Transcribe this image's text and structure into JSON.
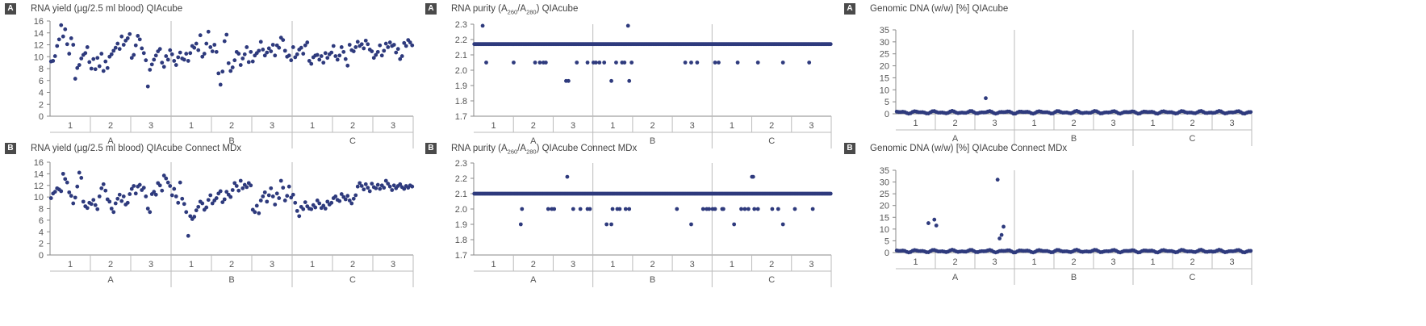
{
  "chart_data": [
    {
      "id": "p1",
      "badge": "A",
      "title_parts": [
        {
          "t": "RNA yield (µg/2.5 ml blood) QIAcube"
        }
      ],
      "type": "scatter",
      "ylim": [
        0,
        16
      ],
      "yticks": [
        0,
        2,
        4,
        6,
        8,
        10,
        12,
        14,
        16
      ],
      "groups": [
        "A",
        "B",
        "C"
      ],
      "subgroups": [
        "1",
        "2",
        "3"
      ],
      "x": [
        1,
        2,
        3,
        4,
        5,
        6,
        7,
        8,
        9,
        10,
        11,
        12,
        13,
        14,
        15,
        16,
        17,
        18,
        19,
        20,
        21,
        22,
        23,
        24,
        25,
        26,
        27,
        28,
        29,
        30,
        31,
        32,
        33,
        34,
        35,
        36,
        37,
        38,
        39,
        40,
        41,
        42,
        43,
        44,
        45,
        46,
        47,
        48,
        49,
        50,
        51,
        52,
        53,
        54,
        55,
        56,
        57,
        58,
        59,
        60,
        61,
        62,
        63,
        64,
        65,
        66,
        67,
        68,
        69,
        70,
        71,
        72,
        73,
        74,
        75,
        76,
        77,
        78,
        79,
        80,
        81,
        82,
        83,
        84,
        85,
        86,
        87,
        88,
        89,
        90,
        91,
        92,
        93,
        94,
        95,
        96,
        97,
        98,
        99,
        100,
        101,
        102,
        103,
        104,
        105,
        106,
        107,
        108,
        109,
        110,
        111,
        112,
        113,
        114,
        115,
        116,
        117,
        118,
        119,
        120,
        121,
        122,
        123,
        124,
        125,
        126,
        127,
        128,
        129,
        130,
        131,
        132,
        133,
        134,
        135,
        136,
        137,
        138,
        139,
        140,
        141,
        142,
        143,
        144,
        145,
        146,
        147,
        148,
        149,
        150,
        151,
        152,
        153,
        154,
        155,
        156,
        157,
        158,
        159,
        160,
        161,
        162,
        163,
        164,
        165,
        166,
        167,
        168,
        169,
        170,
        171,
        172,
        173,
        174,
        175,
        176,
        177,
        178,
        179,
        180
      ],
      "y": [
        9.2,
        9.3,
        10.1,
        11.8,
        12.9,
        15.3,
        13.4,
        14.6,
        12.1,
        10.5,
        13.1,
        12.0,
        6.3,
        8.1,
        8.6,
        9.7,
        10.3,
        10.6,
        11.6,
        9.1,
        8.0,
        9.6,
        7.9,
        9.8,
        8.4,
        10.5,
        7.6,
        9.2,
        8.1,
        10.0,
        10.4,
        11.0,
        11.5,
        12.2,
        11.3,
        13.4,
        12.0,
        12.7,
        13.1,
        13.8,
        9.8,
        10.3,
        11.9,
        13.5,
        12.9,
        11.4,
        10.6,
        9.4,
        5.0,
        7.8,
        8.7,
        9.5,
        10.2,
        10.9,
        11.3,
        9.0,
        8.3,
        10.1,
        9.5,
        11.1,
        10.4,
        9.3,
        8.6,
        9.9,
        10.7,
        9.7,
        9.5,
        10.5,
        9.3,
        10.6,
        11.8,
        11.5,
        12.2,
        11.1,
        13.6,
        10.0,
        10.5,
        12.2,
        14.2,
        11.6,
        10.9,
        12.0,
        10.8,
        7.2,
        5.3,
        7.5,
        12.6,
        13.7,
        8.9,
        7.6,
        8.2,
        9.4,
        10.8,
        10.5,
        8.6,
        9.7,
        10.4,
        11.6,
        9.1,
        10.8,
        9.2,
        10.2,
        10.6,
        11.0,
        12.5,
        11.2,
        10.2,
        10.7,
        11.4,
        10.9,
        12.0,
        10.2,
        11.9,
        11.5,
        13.2,
        12.8,
        11.0,
        10.0,
        10.2,
        9.4,
        11.6,
        9.9,
        10.4,
        11.2,
        11.5,
        10.5,
        11.9,
        12.4,
        9.3,
        8.8,
        9.9,
        10.2,
        10.3,
        9.5,
        10.1,
        9.0,
        10.6,
        9.8,
        10.4,
        10.7,
        11.8,
        10.1,
        9.5,
        10.2,
        11.6,
        10.8,
        9.6,
        8.5,
        12.0,
        11.1,
        10.9,
        11.6,
        12.5,
        11.8,
        12.1,
        11.4,
        12.7,
        12.1,
        11.2,
        10.9,
        9.8,
        10.3,
        10.8,
        11.9,
        10.2,
        11.0,
        12.2,
        11.6,
        12.4,
        11.8,
        12.0,
        10.7,
        11.3,
        9.6,
        10.1,
        12.3,
        11.8,
        12.8,
        12.4,
        11.9
      ]
    },
    {
      "id": "p2",
      "badge": "A",
      "title_parts": [
        {
          "t": "RNA purity (A"
        },
        {
          "s": "260"
        },
        {
          "t": "/A"
        },
        {
          "s": "280"
        },
        {
          "t": ") QIAcube"
        }
      ],
      "type": "scatter",
      "ylim": [
        1.7,
        2.3
      ],
      "yticks": [
        1.7,
        1.8,
        1.9,
        2.0,
        2.1,
        2.2,
        2.3
      ],
      "ydecimals": 1,
      "groups": [
        "A",
        "B",
        "C"
      ],
      "subgroups": [
        "1",
        "2",
        "3"
      ],
      "baseline": 2.17,
      "points": [
        [
          8,
          2.29
        ],
        [
          11,
          2.05
        ],
        [
          34,
          2.05
        ],
        [
          52,
          2.05
        ],
        [
          56,
          2.05
        ],
        [
          59,
          2.05
        ],
        [
          61,
          2.05
        ],
        [
          78,
          1.93
        ],
        [
          80,
          1.93
        ],
        [
          87,
          2.05
        ],
        [
          96,
          2.05
        ],
        [
          101,
          2.05
        ],
        [
          103,
          2.05
        ],
        [
          106,
          2.05
        ],
        [
          110,
          2.05
        ],
        [
          116,
          1.93
        ],
        [
          120,
          2.05
        ],
        [
          125,
          2.05
        ],
        [
          127,
          2.05
        ],
        [
          130,
          2.29
        ],
        [
          131,
          1.93
        ],
        [
          133,
          2.05
        ],
        [
          178,
          2.05
        ],
        [
          183,
          2.05
        ],
        [
          188,
          2.05
        ],
        [
          203,
          2.05
        ],
        [
          206,
          2.05
        ],
        [
          222,
          2.05
        ],
        [
          239,
          2.05
        ],
        [
          260,
          2.05
        ],
        [
          282,
          2.05
        ]
      ],
      "n": 300
    },
    {
      "id": "p3",
      "badge": "A",
      "title_parts": [
        {
          "t": "Genomic DNA (w/w) [%] QIAcube"
        }
      ],
      "type": "scatter",
      "ylim": [
        0,
        35
      ],
      "yticks": [
        0,
        5,
        10,
        15,
        20,
        25,
        30,
        35
      ],
      "groups": [
        "A",
        "B",
        "C"
      ],
      "subgroups": [
        "1",
        "2",
        "3"
      ],
      "baseline": 0.6,
      "points": [
        [
          46,
          6.5
        ]
      ],
      "n": 180
    },
    {
      "id": "p4",
      "badge": "B",
      "title_parts": [
        {
          "t": "RNA yield (µg/2.5 ml blood) QIAcube Connect MDx"
        }
      ],
      "type": "scatter",
      "ylim": [
        0,
        16
      ],
      "yticks": [
        0,
        2,
        4,
        6,
        8,
        10,
        12,
        14,
        16
      ],
      "groups": [
        "A",
        "B",
        "C"
      ],
      "subgroups": [
        "1",
        "2",
        "3"
      ],
      "x": [
        1,
        2,
        3,
        4,
        5,
        6,
        7,
        8,
        9,
        10,
        11,
        12,
        13,
        14,
        15,
        16,
        17,
        18,
        19,
        20,
        21,
        22,
        23,
        24,
        25,
        26,
        27,
        28,
        29,
        30,
        31,
        32,
        33,
        34,
        35,
        36,
        37,
        38,
        39,
        40,
        41,
        42,
        43,
        44,
        45,
        46,
        47,
        48,
        49,
        50,
        51,
        52,
        53,
        54,
        55,
        56,
        57,
        58,
        59,
        60,
        61,
        62,
        63,
        64,
        65,
        66,
        67,
        68,
        69,
        70,
        71,
        72,
        73,
        74,
        75,
        76,
        77,
        78,
        79,
        80,
        81,
        82,
        83,
        84,
        85,
        86,
        87,
        88,
        89,
        90,
        91,
        92,
        93,
        94,
        95,
        96,
        97,
        98,
        99,
        100,
        101,
        102,
        103,
        104,
        105,
        106,
        107,
        108,
        109,
        110,
        111,
        112,
        113,
        114,
        115,
        116,
        117,
        118,
        119,
        120,
        121,
        122,
        123,
        124,
        125,
        126,
        127,
        128,
        129,
        130,
        131,
        132,
        133,
        134,
        135,
        136,
        137,
        138,
        139,
        140,
        141,
        142,
        143,
        144,
        145,
        146,
        147,
        148,
        149,
        150,
        151,
        152,
        153,
        154,
        155,
        156,
        157,
        158,
        159,
        160,
        161,
        162,
        163,
        164,
        165,
        166,
        167,
        168,
        169,
        170,
        171,
        172,
        173,
        174,
        175,
        176,
        177,
        178,
        179,
        180
      ],
      "y": [
        9.8,
        10.6,
        10.9,
        11.5,
        11.3,
        11.0,
        14.0,
        13.1,
        12.5,
        10.8,
        10.2,
        8.9,
        9.9,
        11.8,
        14.2,
        13.3,
        9.2,
        8.4,
        8.1,
        9.0,
        8.8,
        9.5,
        8.6,
        7.9,
        10.1,
        11.5,
        12.2,
        11.1,
        9.6,
        9.2,
        8.0,
        7.4,
        8.9,
        9.7,
        10.4,
        9.3,
        10.1,
        8.7,
        9.0,
        10.5,
        11.4,
        11.9,
        10.6,
        11.8,
        12.1,
        11.2,
        11.6,
        10.1,
        8.0,
        7.4,
        10.5,
        10.9,
        10.4,
        12.4,
        12.0,
        11.1,
        13.7,
        13.2,
        12.5,
        11.9,
        10.3,
        11.4,
        10.1,
        9.0,
        12.5,
        9.7,
        8.8,
        7.4,
        3.3,
        6.7,
        6.2,
        6.6,
        7.7,
        8.3,
        9.2,
        8.9,
        7.8,
        8.2,
        9.5,
        10.3,
        8.9,
        9.4,
        9.8,
        10.6,
        11.0,
        9.1,
        9.6,
        10.9,
        10.4,
        10.0,
        11.2,
        12.4,
        11.9,
        11.1,
        12.8,
        11.5,
        12.1,
        11.7,
        12.4,
        12.0,
        7.8,
        7.4,
        8.5,
        7.2,
        9.4,
        10.1,
        10.8,
        9.2,
        10.3,
        11.5,
        10.1,
        8.7,
        10.6,
        9.8,
        12.8,
        11.6,
        9.4,
        10.2,
        11.8,
        9.9,
        10.4,
        9.0,
        7.6,
        6.7,
        8.3,
        7.9,
        9.1,
        8.4,
        8.0,
        7.9,
        8.6,
        8.2,
        9.4,
        8.9,
        8.1,
        8.5,
        8.0,
        9.2,
        8.7,
        9.0,
        9.8,
        10.1,
        9.5,
        9.3,
        10.5,
        10.0,
        9.6,
        10.2,
        9.4,
        8.9,
        9.7,
        10.3,
        11.8,
        12.4,
        11.9,
        11.3,
        12.2,
        11.6,
        11.0,
        12.3,
        11.7,
        11.5,
        12.1,
        11.4,
        12.0,
        11.6,
        12.8,
        12.3,
        11.8,
        11.2,
        12.0,
        11.5,
        11.9,
        12.2,
        11.7,
        11.4,
        11.9,
        11.6,
        12.0,
        11.8
      ]
    },
    {
      "id": "p5",
      "badge": "B",
      "title_parts": [
        {
          "t": "RNA purity (A"
        },
        {
          "s": "260"
        },
        {
          "t": "/A"
        },
        {
          "s": "280"
        },
        {
          "t": ") QIAcube Connect MDx"
        }
      ],
      "type": "scatter",
      "ylim": [
        1.7,
        2.3
      ],
      "yticks": [
        1.7,
        1.8,
        1.9,
        2.0,
        2.1,
        2.2,
        2.3
      ],
      "ydecimals": 1,
      "groups": [
        "A",
        "B",
        "C"
      ],
      "subgroups": [
        "1",
        "2",
        "3"
      ],
      "baseline": 2.1,
      "points": [
        [
          40,
          1.9
        ],
        [
          41,
          2.0
        ],
        [
          63,
          2.0
        ],
        [
          66,
          2.0
        ],
        [
          68,
          2.0
        ],
        [
          79,
          2.21
        ],
        [
          84,
          2.0
        ],
        [
          90,
          2.0
        ],
        [
          96,
          2.0
        ],
        [
          98,
          2.0
        ],
        [
          112,
          1.9
        ],
        [
          116,
          1.9
        ],
        [
          117,
          2.0
        ],
        [
          121,
          2.0
        ],
        [
          123,
          2.0
        ],
        [
          128,
          2.0
        ],
        [
          131,
          2.0
        ],
        [
          171,
          2.0
        ],
        [
          183,
          1.9
        ],
        [
          193,
          2.0
        ],
        [
          196,
          2.0
        ],
        [
          198,
          2.0
        ],
        [
          201,
          2.0
        ],
        [
          203,
          2.0
        ],
        [
          209,
          2.0
        ],
        [
          210,
          2.0
        ],
        [
          219,
          1.9
        ],
        [
          225,
          2.0
        ],
        [
          228,
          2.0
        ],
        [
          231,
          2.0
        ],
        [
          234,
          2.21
        ],
        [
          235,
          2.21
        ],
        [
          236,
          2.0
        ],
        [
          239,
          2.0
        ],
        [
          251,
          2.0
        ],
        [
          256,
          2.0
        ],
        [
          260,
          1.9
        ],
        [
          270,
          2.0
        ],
        [
          285,
          2.0
        ]
      ],
      "n": 300
    },
    {
      "id": "p6",
      "badge": "B",
      "title_parts": [
        {
          "t": "Genomic DNA (w/w) [%] QIAcube Connect MDx"
        }
      ],
      "type": "scatter",
      "ylim": [
        0,
        35
      ],
      "yticks": [
        0,
        5,
        10,
        15,
        20,
        25,
        30,
        35
      ],
      "groups": [
        "A",
        "B",
        "C"
      ],
      "subgroups": [
        "1",
        "2",
        "3"
      ],
      "baseline": 0.6,
      "points": [
        [
          17,
          12.5
        ],
        [
          20,
          14.0
        ],
        [
          21,
          11.5
        ],
        [
          52,
          31.0
        ],
        [
          53,
          6.0
        ],
        [
          54,
          7.5
        ],
        [
          55,
          11.0
        ]
      ],
      "n": 180
    }
  ]
}
